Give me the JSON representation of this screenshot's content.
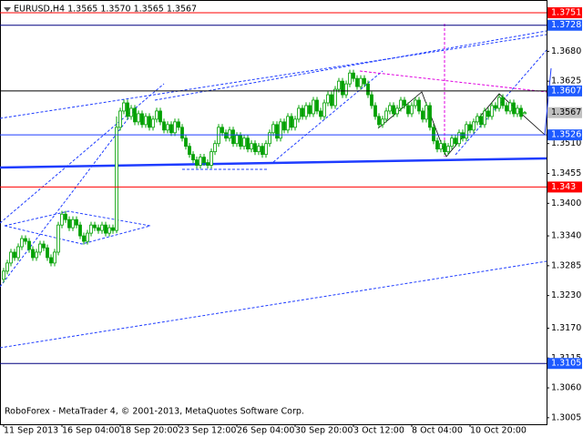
{
  "chart_data": {
    "type": "candlestick",
    "header": "EURUSD,H4  1.3565 1.3570 1.3565 1.3567",
    "footer": "RoboForex - MetaTrader 4, © 2001-2013, MetaQuotes Software Corp.",
    "bull_color": "#00a000",
    "bear_color": "#00a000",
    "xlim": [
      -1,
      149
    ],
    "xticks": [
      {
        "value": 0,
        "label": "11 Sep 2013"
      },
      {
        "value": 16,
        "label": "16 Sep 04:00"
      },
      {
        "value": 32,
        "label": "18 Sep 20:00"
      },
      {
        "value": 48,
        "label": "23 Sep 12:00"
      },
      {
        "value": 64,
        "label": "26 Sep 04:00"
      },
      {
        "value": 80,
        "label": "30 Sep 20:00"
      },
      {
        "value": 96,
        "label": "3 Oct 12:00"
      },
      {
        "value": 112,
        "label": "8 Oct 04:00"
      },
      {
        "value": 128,
        "label": "10 Oct 20:00"
      }
    ],
    "ylim": [
      1.2993,
      1.37745
    ],
    "yticks": [
      {
        "value": 1.368,
        "label": "1.3680"
      },
      1.3625,
      {
        "value": 1.351,
        "label": "1.3510"
      },
      1.3455,
      {
        "value": 1.34,
        "label": "1.3400"
      },
      {
        "value": 1.334,
        "label": "1.3340"
      },
      1.3285,
      {
        "value": 1.323,
        "label": "1.3230"
      },
      {
        "value": 1.317,
        "label": "1.3170"
      },
      1.3115,
      {
        "value": 1.306,
        "label": "1.3060"
      },
      1.3005
    ],
    "levels": [
      {
        "value": 1.3751,
        "color": "#ff0000",
        "box": "#ff0000"
      },
      {
        "value": 1.3728,
        "color": "#000080",
        "box": "#1e5aff"
      },
      {
        "value": 1.3607,
        "color": "#000000",
        "box": "#1e5aff"
      },
      {
        "value": 1.3526,
        "color": "#1e3cff",
        "box": "#1e5aff"
      },
      {
        "value": 1.343,
        "color": "#ff0000",
        "box": "#ff0000"
      },
      {
        "value": 1.3105,
        "color": "#000080",
        "box": "#1e5aff"
      }
    ],
    "bid": 1.3567,
    "candles": [
      [
        1.326,
        1.3281,
        1.3254,
        1.3275
      ],
      [
        1.3275,
        1.3296,
        1.3269,
        1.329
      ],
      [
        1.329,
        1.3316,
        1.3284,
        1.331
      ],
      [
        1.331,
        1.3316,
        1.3294,
        1.33
      ],
      [
        1.33,
        1.3326,
        1.3294,
        1.332
      ],
      [
        1.332,
        1.3341,
        1.3314,
        1.3335
      ],
      [
        1.3335,
        1.3341,
        1.3324,
        1.333
      ],
      [
        1.333,
        1.3336,
        1.3309,
        1.3315
      ],
      [
        1.3315,
        1.3321,
        1.3294,
        1.33
      ],
      [
        1.33,
        1.3316,
        1.3294,
        1.331
      ],
      [
        1.331,
        1.3331,
        1.3304,
        1.3325
      ],
      [
        1.3325,
        1.3331,
        1.3312,
        1.3318
      ],
      [
        1.3318,
        1.3324,
        1.3294,
        1.33
      ],
      [
        1.33,
        1.3306,
        1.3284,
        1.329
      ],
      [
        1.329,
        1.3316,
        1.3284,
        1.331
      ],
      [
        1.331,
        1.3366,
        1.3304,
        1.336
      ],
      [
        1.336,
        1.3386,
        1.3354,
        1.338
      ],
      [
        1.338,
        1.3386,
        1.3364,
        1.337
      ],
      [
        1.337,
        1.3376,
        1.3349,
        1.3355
      ],
      [
        1.3355,
        1.3376,
        1.3349,
        1.337
      ],
      [
        1.337,
        1.3376,
        1.3354,
        1.336
      ],
      [
        1.336,
        1.3366,
        1.3334,
        1.334
      ],
      [
        1.334,
        1.3346,
        1.3324,
        1.333
      ],
      [
        1.333,
        1.3351,
        1.3324,
        1.3345
      ],
      [
        1.3345,
        1.3366,
        1.3339,
        1.336
      ],
      [
        1.336,
        1.3366,
        1.3349,
        1.3355
      ],
      [
        1.3355,
        1.3361,
        1.3344,
        1.335
      ],
      [
        1.335,
        1.3366,
        1.3344,
        1.336
      ],
      [
        1.336,
        1.3366,
        1.3339,
        1.3345
      ],
      [
        1.3345,
        1.3361,
        1.3339,
        1.3355
      ],
      [
        1.3355,
        1.3361,
        1.3344,
        1.335
      ],
      [
        1.335,
        1.356,
        1.3345,
        1.354
      ],
      [
        1.354,
        1.3576,
        1.3534,
        1.357
      ],
      [
        1.357,
        1.3591,
        1.3564,
        1.3585
      ],
      [
        1.3585,
        1.3591,
        1.3554,
        1.356
      ],
      [
        1.356,
        1.3581,
        1.3554,
        1.3575
      ],
      [
        1.3575,
        1.3581,
        1.3544,
        1.355
      ],
      [
        1.355,
        1.3571,
        1.3544,
        1.3565
      ],
      [
        1.3565,
        1.3571,
        1.3539,
        1.3545
      ],
      [
        1.3545,
        1.3566,
        1.3539,
        1.356
      ],
      [
        1.356,
        1.3566,
        1.3534,
        1.354
      ],
      [
        1.354,
        1.3561,
        1.3534,
        1.3555
      ],
      [
        1.3555,
        1.3576,
        1.3549,
        1.357
      ],
      [
        1.357,
        1.3576,
        1.3544,
        1.355
      ],
      [
        1.355,
        1.3556,
        1.3529,
        1.3535
      ],
      [
        1.3535,
        1.3551,
        1.3529,
        1.3545
      ],
      [
        1.3545,
        1.3551,
        1.3524,
        1.353
      ],
      [
        1.353,
        1.3556,
        1.3524,
        1.355
      ],
      [
        1.355,
        1.3556,
        1.3534,
        1.354
      ],
      [
        1.354,
        1.3546,
        1.3514,
        1.352
      ],
      [
        1.352,
        1.3526,
        1.3499,
        1.3505
      ],
      [
        1.3505,
        1.3511,
        1.3484,
        1.349
      ],
      [
        1.349,
        1.3496,
        1.3474,
        1.348
      ],
      [
        1.348,
        1.3486,
        1.3464,
        1.347
      ],
      [
        1.347,
        1.3491,
        1.3464,
        1.3485
      ],
      [
        1.3485,
        1.3491,
        1.3469,
        1.3475
      ],
      [
        1.3475,
        1.3481,
        1.3464,
        1.347
      ],
      [
        1.347,
        1.3501,
        1.3464,
        1.3495
      ],
      [
        1.3495,
        1.3516,
        1.3489,
        1.351
      ],
      [
        1.351,
        1.3546,
        1.3504,
        1.354
      ],
      [
        1.354,
        1.3546,
        1.3524,
        1.353
      ],
      [
        1.353,
        1.3536,
        1.3514,
        1.352
      ],
      [
        1.352,
        1.3541,
        1.3514,
        1.3535
      ],
      [
        1.3535,
        1.3541,
        1.3504,
        1.351
      ],
      [
        1.351,
        1.3531,
        1.3504,
        1.3525
      ],
      [
        1.3525,
        1.3531,
        1.3499,
        1.3505
      ],
      [
        1.3505,
        1.3526,
        1.3499,
        1.352
      ],
      [
        1.352,
        1.3526,
        1.3494,
        1.35
      ],
      [
        1.35,
        1.3516,
        1.3494,
        1.351
      ],
      [
        1.351,
        1.3516,
        1.3489,
        1.3495
      ],
      [
        1.3495,
        1.3511,
        1.3489,
        1.3505
      ],
      [
        1.3505,
        1.3511,
        1.3484,
        1.349
      ],
      [
        1.349,
        1.3516,
        1.3484,
        1.351
      ],
      [
        1.351,
        1.3536,
        1.3504,
        1.353
      ],
      [
        1.353,
        1.3551,
        1.3524,
        1.3545
      ],
      [
        1.3545,
        1.3551,
        1.3514,
        1.352
      ],
      [
        1.352,
        1.3556,
        1.3514,
        1.355
      ],
      [
        1.355,
        1.3556,
        1.3529,
        1.3535
      ],
      [
        1.3535,
        1.3566,
        1.3529,
        1.356
      ],
      [
        1.356,
        1.3566,
        1.3534,
        1.354
      ],
      [
        1.354,
        1.3561,
        1.3534,
        1.3555
      ],
      [
        1.3555,
        1.3581,
        1.3549,
        1.3575
      ],
      [
        1.3575,
        1.3581,
        1.3554,
        1.356
      ],
      [
        1.356,
        1.3586,
        1.3554,
        1.358
      ],
      [
        1.358,
        1.3586,
        1.3559,
        1.3565
      ],
      [
        1.3565,
        1.3596,
        1.3559,
        1.359
      ],
      [
        1.359,
        1.3596,
        1.3564,
        1.357
      ],
      [
        1.357,
        1.3576,
        1.3554,
        1.356
      ],
      [
        1.356,
        1.3591,
        1.3554,
        1.3585
      ],
      [
        1.3585,
        1.3606,
        1.3579,
        1.36
      ],
      [
        1.36,
        1.3606,
        1.3574,
        1.358
      ],
      [
        1.358,
        1.3616,
        1.3574,
        1.361
      ],
      [
        1.361,
        1.3631,
        1.3604,
        1.3625
      ],
      [
        1.3625,
        1.3631,
        1.3594,
        1.36
      ],
      [
        1.36,
        1.3626,
        1.3594,
        1.362
      ],
      [
        1.362,
        1.3646,
        1.3614,
        1.364
      ],
      [
        1.364,
        1.3646,
        1.3624,
        1.363
      ],
      [
        1.363,
        1.3636,
        1.3609,
        1.3615
      ],
      [
        1.3615,
        1.3636,
        1.3609,
        1.363
      ],
      [
        1.363,
        1.3636,
        1.3614,
        1.362
      ],
      [
        1.362,
        1.3626,
        1.3594,
        1.36
      ],
      [
        1.36,
        1.3606,
        1.3574,
        1.358
      ],
      [
        1.358,
        1.3586,
        1.3554,
        1.356
      ],
      [
        1.356,
        1.3566,
        1.3539,
        1.3545
      ],
      [
        1.3545,
        1.3561,
        1.3539,
        1.3555
      ],
      [
        1.3555,
        1.3576,
        1.3549,
        1.357
      ],
      [
        1.357,
        1.3586,
        1.3564,
        1.358
      ],
      [
        1.358,
        1.3586,
        1.3559,
        1.3565
      ],
      [
        1.3565,
        1.3581,
        1.3559,
        1.3575
      ],
      [
        1.3575,
        1.3596,
        1.3569,
        1.359
      ],
      [
        1.359,
        1.3596,
        1.3574,
        1.358
      ],
      [
        1.358,
        1.3586,
        1.3559,
        1.3565
      ],
      [
        1.3565,
        1.3586,
        1.3559,
        1.358
      ],
      [
        1.358,
        1.3596,
        1.3574,
        1.359
      ],
      [
        1.359,
        1.3596,
        1.3564,
        1.357
      ],
      [
        1.357,
        1.3576,
        1.3549,
        1.3555
      ],
      [
        1.3555,
        1.3586,
        1.3549,
        1.358
      ],
      [
        1.358,
        1.3586,
        1.3534,
        1.354
      ],
      [
        1.354,
        1.3546,
        1.3509,
        1.3515
      ],
      [
        1.3515,
        1.3521,
        1.3494,
        1.35
      ],
      [
        1.35,
        1.3516,
        1.3494,
        1.351
      ],
      [
        1.351,
        1.3516,
        1.3489,
        1.3495
      ],
      [
        1.3495,
        1.3511,
        1.3489,
        1.3505
      ],
      [
        1.3505,
        1.3526,
        1.3499,
        1.352
      ],
      [
        1.352,
        1.3526,
        1.3504,
        1.351
      ],
      [
        1.351,
        1.3536,
        1.3504,
        1.353
      ],
      [
        1.353,
        1.3536,
        1.3514,
        1.352
      ],
      [
        1.352,
        1.3551,
        1.3514,
        1.3545
      ],
      [
        1.3545,
        1.3551,
        1.3529,
        1.3535
      ],
      [
        1.3535,
        1.3556,
        1.3529,
        1.355
      ],
      [
        1.355,
        1.3566,
        1.3544,
        1.356
      ],
      [
        1.356,
        1.3566,
        1.3539,
        1.3545
      ],
      [
        1.3545,
        1.3576,
        1.3539,
        1.357
      ],
      [
        1.357,
        1.3576,
        1.3554,
        1.356
      ],
      [
        1.356,
        1.3586,
        1.3554,
        1.358
      ],
      [
        1.358,
        1.3586,
        1.3569,
        1.3575
      ],
      [
        1.3575,
        1.3601,
        1.3569,
        1.3595
      ],
      [
        1.3595,
        1.3601,
        1.3574,
        1.358
      ],
      [
        1.358,
        1.3586,
        1.3564,
        1.357
      ],
      [
        1.357,
        1.3591,
        1.3564,
        1.3585
      ],
      [
        1.3585,
        1.3591,
        1.3559,
        1.3565
      ],
      [
        1.3565,
        1.3581,
        1.3559,
        1.3575
      ],
      [
        1.3575,
        1.3581,
        1.3554,
        1.356
      ],
      [
        1.3565,
        1.357,
        1.3565,
        1.3567
      ]
    ]
  }
}
